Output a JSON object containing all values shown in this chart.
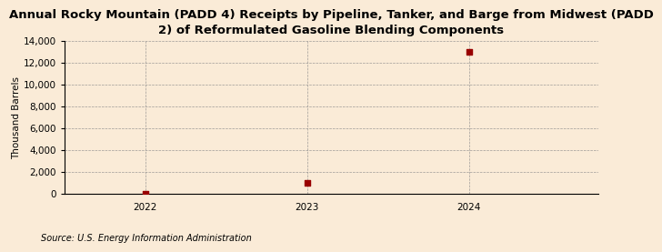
{
  "title": "Annual Rocky Mountain (PADD 4) Receipts by Pipeline, Tanker, and Barge from Midwest (PADD\n2) of Reformulated Gasoline Blending Components",
  "ylabel": "Thousand Barrels",
  "source": "Source: U.S. Energy Information Administration",
  "x_values": [
    2022,
    2023,
    2024
  ],
  "y_values": [
    0,
    1000,
    13000
  ],
  "xlim": [
    2021.5,
    2024.8
  ],
  "ylim": [
    0,
    14000
  ],
  "yticks": [
    0,
    2000,
    4000,
    6000,
    8000,
    10000,
    12000,
    14000
  ],
  "xticks": [
    2022,
    2023,
    2024
  ],
  "marker_color": "#990000",
  "marker_size": 4,
  "background_color": "#faebd7",
  "grid_color": "#888888",
  "title_fontsize": 9.5,
  "ylabel_fontsize": 7.5,
  "source_fontsize": 7,
  "tick_fontsize": 7.5
}
